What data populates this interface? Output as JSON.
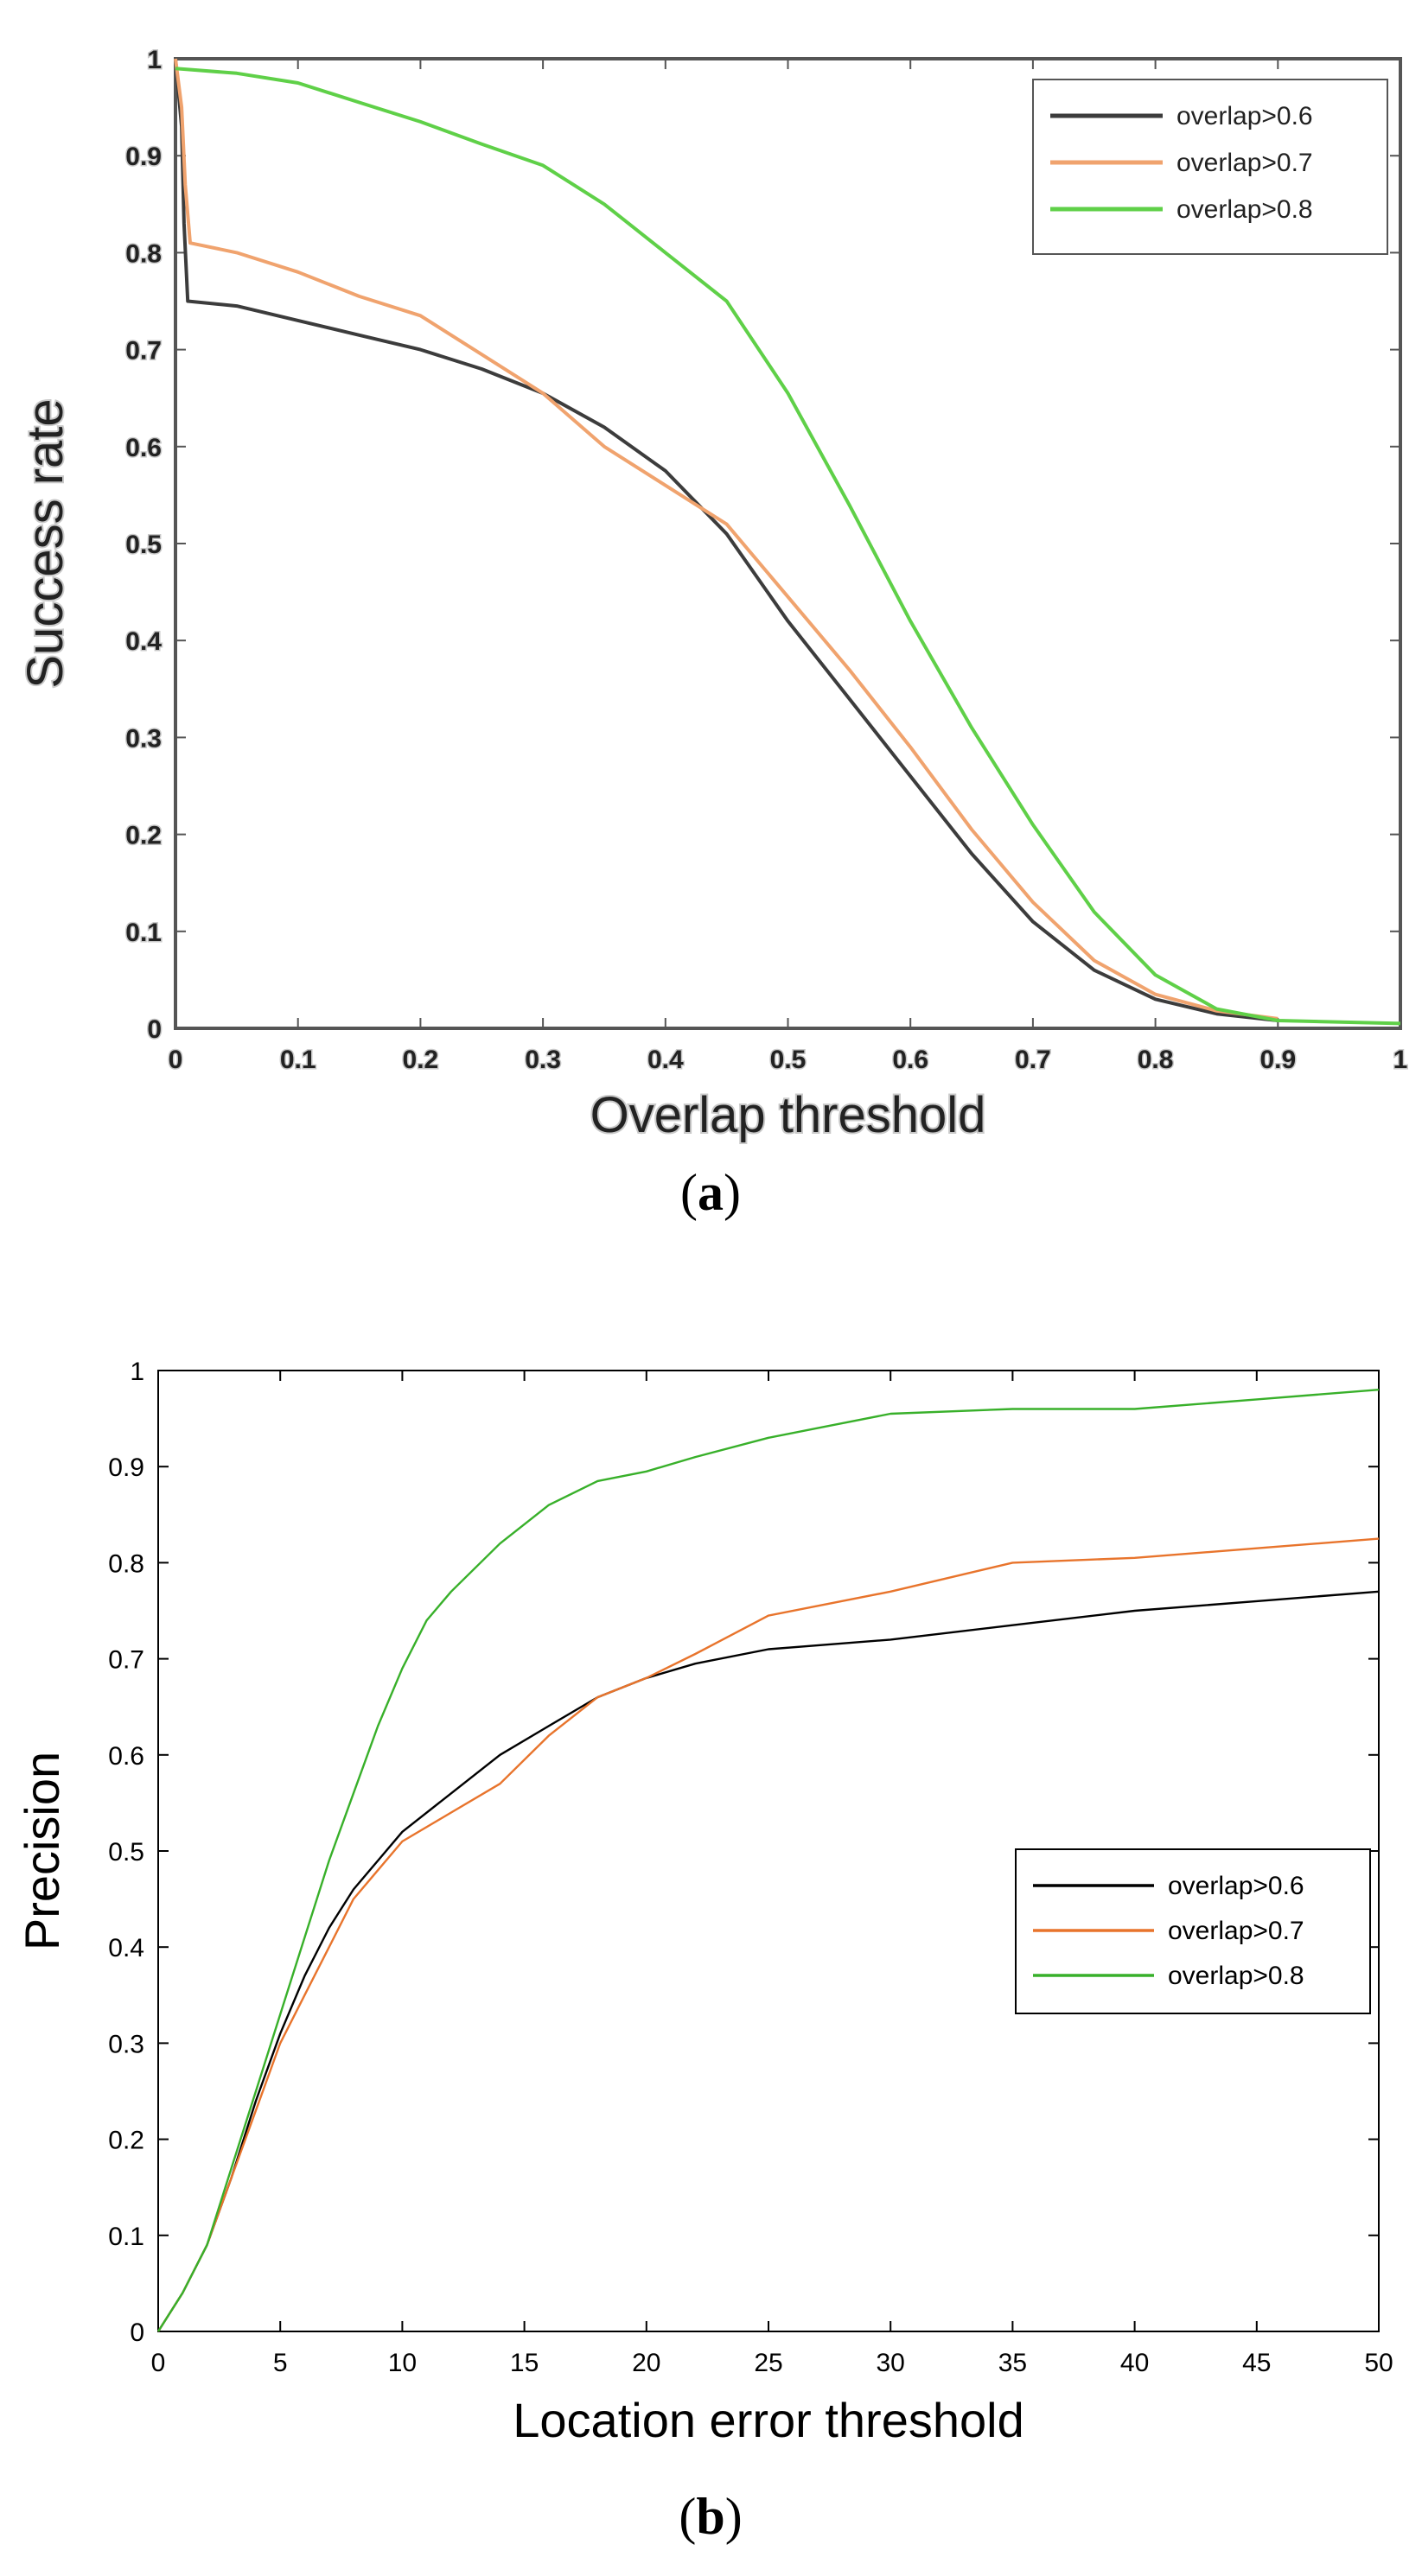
{
  "chart_data": [
    {
      "type": "line",
      "panel": "a",
      "caption_letter": "a",
      "xlabel": "Overlap threshold",
      "ylabel": "Success rate",
      "xlim": [
        0,
        1
      ],
      "ylim": [
        0,
        1
      ],
      "x_ticks": [
        "0",
        "0.1",
        "0.2",
        "0.3",
        "0.4",
        "0.5",
        "0.6",
        "0.7",
        "0.8",
        "0.9",
        "1"
      ],
      "y_ticks": [
        "0",
        "0.1",
        "0.2",
        "0.3",
        "0.4",
        "0.5",
        "0.6",
        "0.7",
        "0.8",
        "0.9",
        "1"
      ],
      "legend_position": "top-right",
      "series": [
        {
          "name": "overlap>0.6",
          "color": "#3c3c3c",
          "x": [
            0,
            0.005,
            0.007,
            0.01,
            0.05,
            0.1,
            0.15,
            0.2,
            0.25,
            0.3,
            0.35,
            0.4,
            0.45,
            0.5,
            0.55,
            0.6,
            0.65,
            0.7,
            0.75,
            0.8,
            0.85,
            0.9
          ],
          "y": [
            1.0,
            0.93,
            0.83,
            0.75,
            0.745,
            0.73,
            0.715,
            0.7,
            0.68,
            0.655,
            0.62,
            0.575,
            0.51,
            0.42,
            0.34,
            0.26,
            0.18,
            0.11,
            0.06,
            0.03,
            0.015,
            0.008
          ]
        },
        {
          "name": "overlap>0.7",
          "color": "#f0a36e",
          "x": [
            0,
            0.005,
            0.008,
            0.012,
            0.05,
            0.1,
            0.15,
            0.2,
            0.25,
            0.3,
            0.35,
            0.4,
            0.45,
            0.5,
            0.55,
            0.6,
            0.65,
            0.7,
            0.75,
            0.8,
            0.85,
            0.9
          ],
          "y": [
            1.0,
            0.95,
            0.87,
            0.81,
            0.8,
            0.78,
            0.755,
            0.735,
            0.695,
            0.655,
            0.6,
            0.56,
            0.52,
            0.445,
            0.37,
            0.29,
            0.205,
            0.13,
            0.07,
            0.035,
            0.018,
            0.01
          ]
        },
        {
          "name": "overlap>0.8",
          "color": "#5fd048",
          "x": [
            0,
            0.05,
            0.1,
            0.15,
            0.2,
            0.25,
            0.3,
            0.35,
            0.4,
            0.45,
            0.5,
            0.55,
            0.6,
            0.65,
            0.7,
            0.75,
            0.8,
            0.85,
            0.9,
            1.0
          ],
          "y": [
            0.99,
            0.985,
            0.975,
            0.955,
            0.935,
            0.912,
            0.89,
            0.85,
            0.8,
            0.75,
            0.655,
            0.54,
            0.42,
            0.31,
            0.21,
            0.12,
            0.055,
            0.02,
            0.008,
            0.005
          ]
        }
      ]
    },
    {
      "type": "line",
      "panel": "b",
      "caption_letter": "b",
      "xlabel": "Location error threshold",
      "ylabel": "Precision",
      "xlim": [
        0,
        50
      ],
      "ylim": [
        0,
        1
      ],
      "x_ticks": [
        "0",
        "5",
        "10",
        "15",
        "20",
        "25",
        "30",
        "35",
        "40",
        "45",
        "50"
      ],
      "y_ticks": [
        "0",
        "0.1",
        "0.2",
        "0.3",
        "0.4",
        "0.5",
        "0.6",
        "0.7",
        "0.8",
        "0.9",
        "1"
      ],
      "legend_position": "center-right",
      "series": [
        {
          "name": "overlap>0.6",
          "color": "#000000",
          "x": [
            0,
            1,
            2,
            3,
            4,
            5,
            6,
            7,
            8,
            9,
            10,
            12,
            14,
            16,
            18,
            20,
            22,
            25,
            30,
            35,
            40,
            45,
            50
          ],
          "y": [
            0,
            0.04,
            0.09,
            0.16,
            0.24,
            0.31,
            0.37,
            0.42,
            0.46,
            0.49,
            0.52,
            0.56,
            0.6,
            0.63,
            0.66,
            0.68,
            0.695,
            0.71,
            0.72,
            0.735,
            0.75,
            0.76,
            0.77
          ]
        },
        {
          "name": "overlap>0.7",
          "color": "#e8742c",
          "x": [
            0,
            1,
            2,
            3,
            4,
            5,
            6,
            7,
            8,
            9,
            10,
            12,
            14,
            16,
            18,
            20,
            22,
            25,
            30,
            35,
            40,
            45,
            50
          ],
          "y": [
            0,
            0.04,
            0.09,
            0.16,
            0.23,
            0.3,
            0.35,
            0.4,
            0.45,
            0.48,
            0.51,
            0.54,
            0.57,
            0.62,
            0.66,
            0.68,
            0.705,
            0.745,
            0.77,
            0.8,
            0.805,
            0.815,
            0.825
          ]
        },
        {
          "name": "overlap>0.8",
          "color": "#38b02a",
          "x": [
            0,
            1,
            2,
            3,
            4,
            5,
            6,
            7,
            8,
            9,
            10,
            11,
            12,
            14,
            16,
            18,
            20,
            22,
            25,
            30,
            35,
            40,
            45,
            50
          ],
          "y": [
            0,
            0.04,
            0.09,
            0.17,
            0.25,
            0.33,
            0.41,
            0.49,
            0.56,
            0.63,
            0.69,
            0.74,
            0.77,
            0.82,
            0.86,
            0.885,
            0.895,
            0.91,
            0.93,
            0.955,
            0.96,
            0.96,
            0.97,
            0.98
          ]
        }
      ]
    }
  ]
}
